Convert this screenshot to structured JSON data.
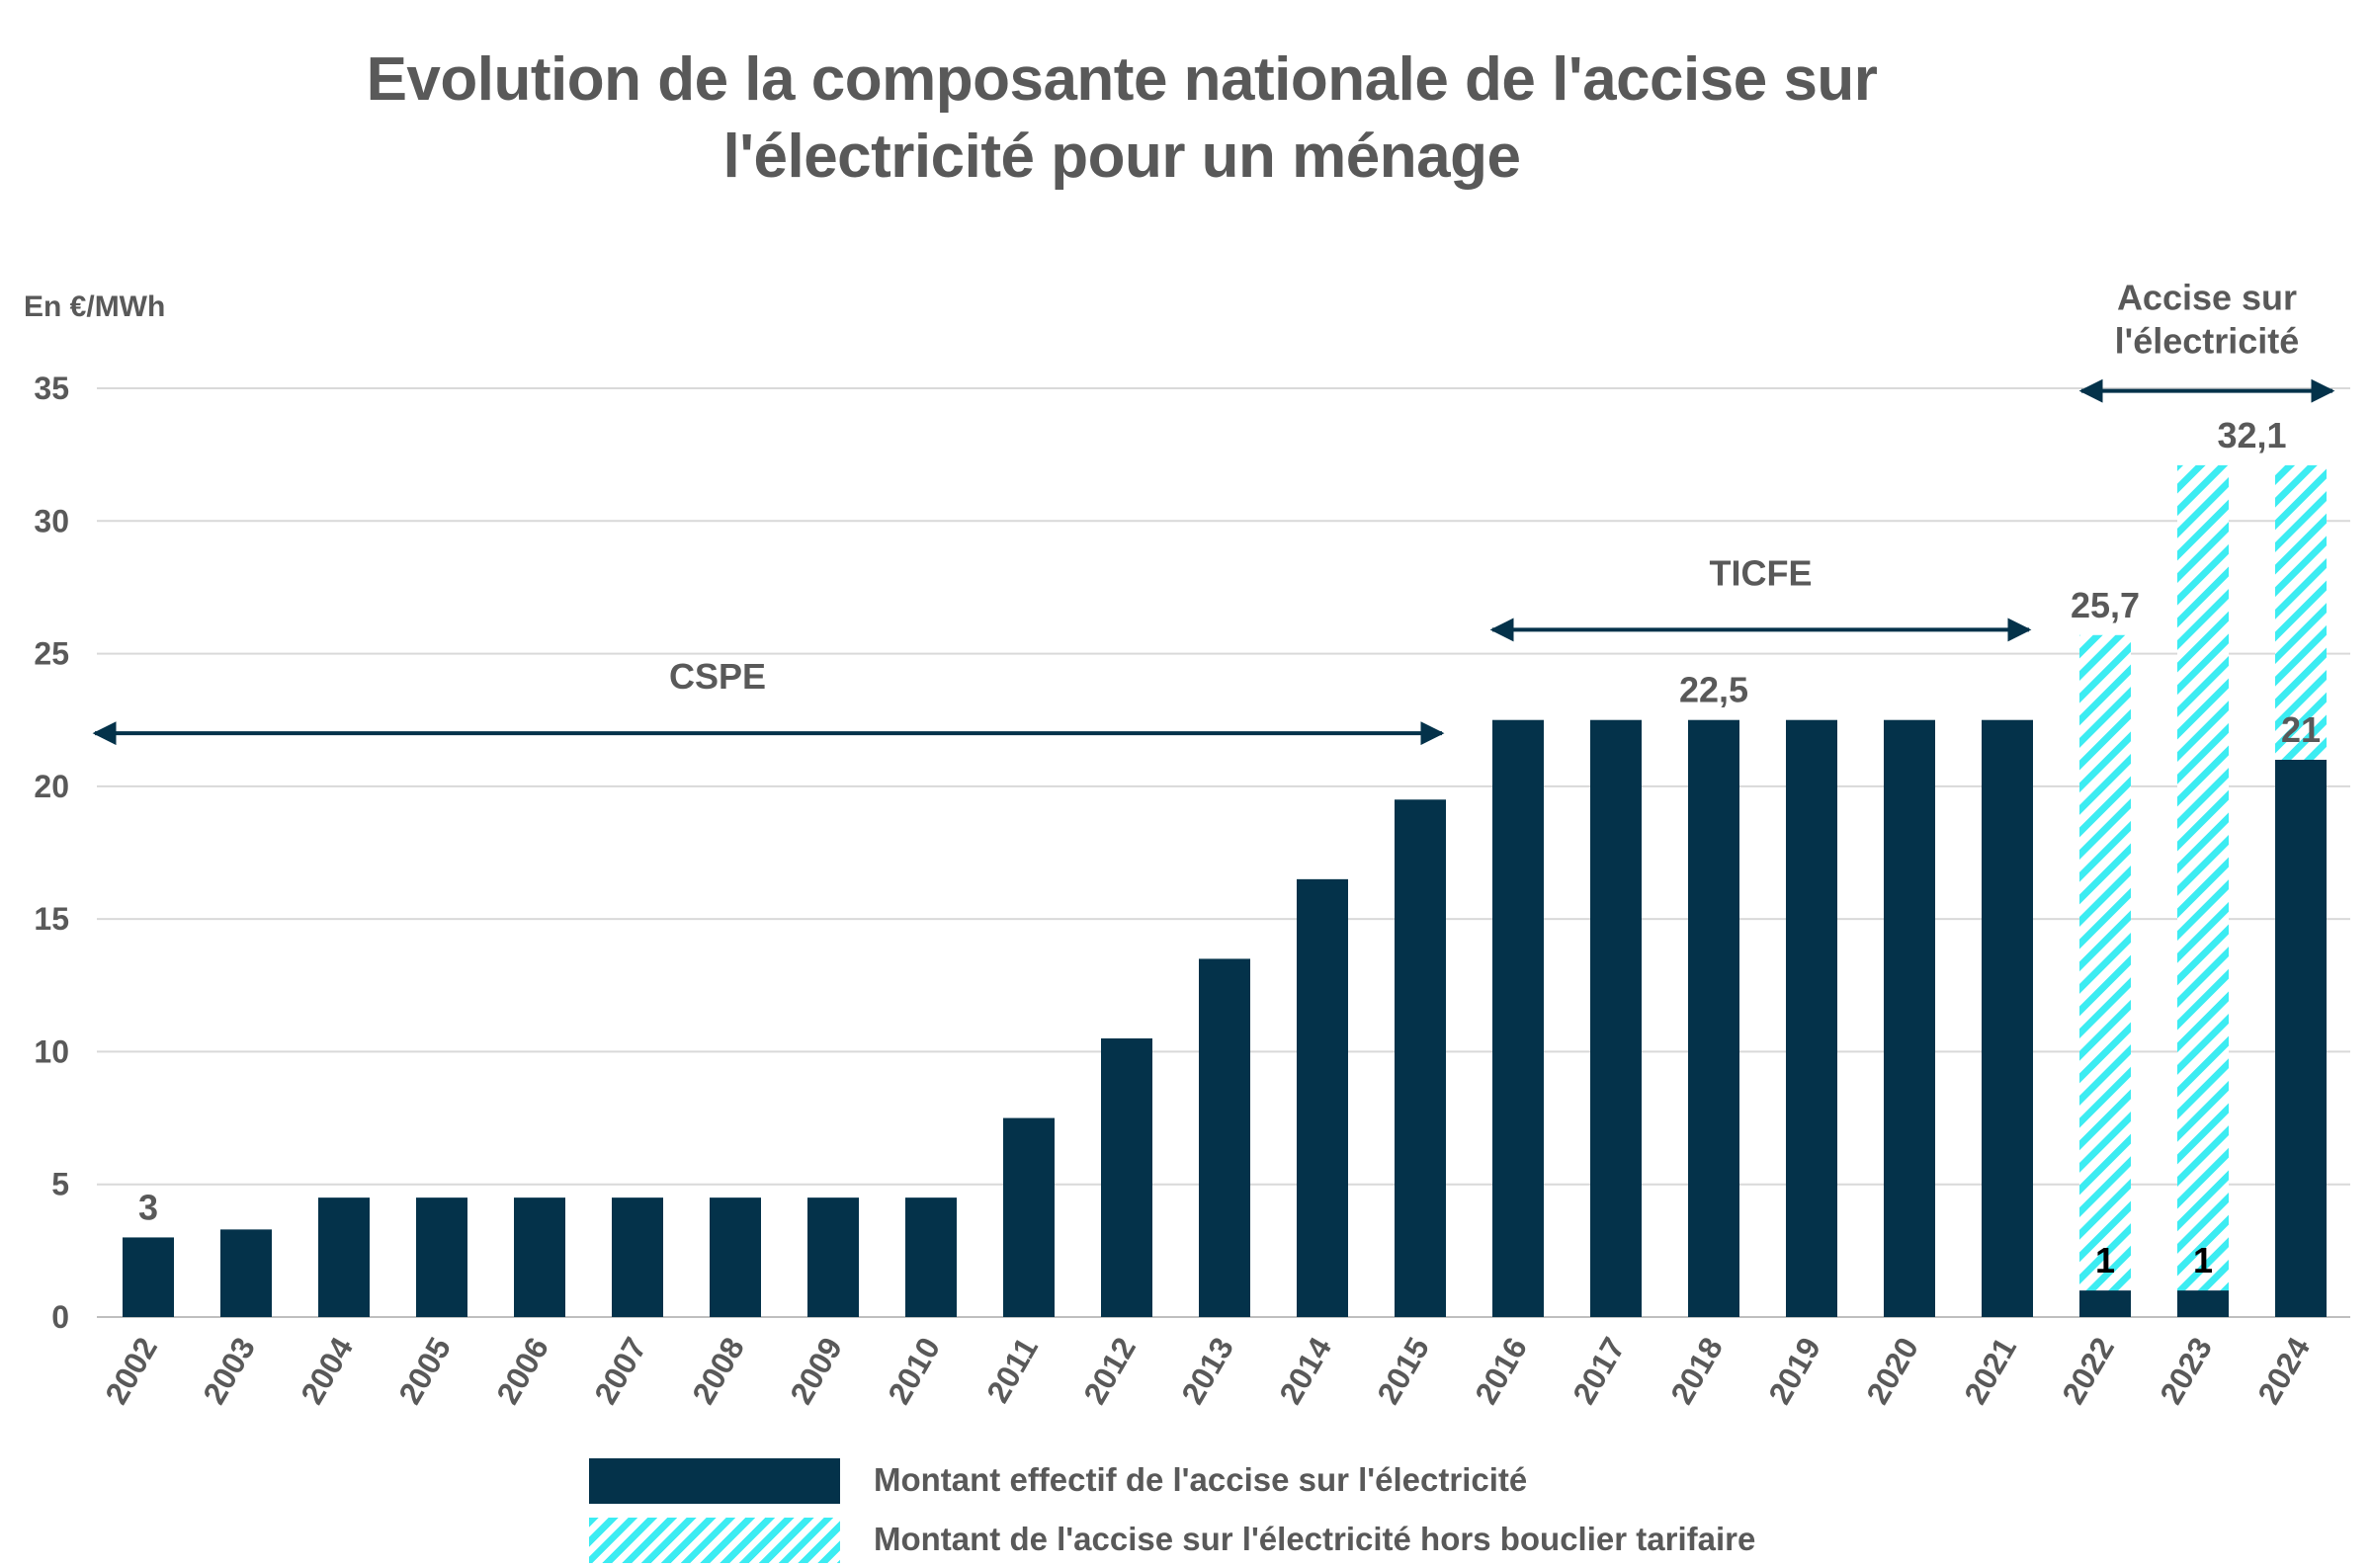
{
  "title_lines": [
    "Evolution de la composante nationale de l'accise sur",
    "l'électricité pour un ménage"
  ],
  "colors": {
    "effective": "#04324a",
    "hatch": "#3cecf2",
    "grid": "#d9d9d9",
    "text": "#595959",
    "arrow": "#04324a"
  },
  "chart_data": {
    "type": "bar",
    "unit_label": "En €/MWh",
    "categories": [
      "2002",
      "2003",
      "2004",
      "2005",
      "2006",
      "2007",
      "2008",
      "2009",
      "2010",
      "2011",
      "2012",
      "2013",
      "2014",
      "2015",
      "2016",
      "2017",
      "2018",
      "2019",
      "2020",
      "2021",
      "2022",
      "2023",
      "2024"
    ],
    "series": [
      {
        "name": "Montant effectif de l'accise sur l'électricité",
        "style": "solid",
        "values": [
          3,
          3.3,
          4.5,
          4.5,
          4.5,
          4.5,
          4.5,
          4.5,
          4.5,
          7.5,
          10.5,
          13.5,
          16.5,
          19.5,
          22.5,
          22.5,
          22.5,
          22.5,
          22.5,
          22.5,
          1,
          1,
          21
        ]
      },
      {
        "name": "Montant de l'accise sur l'électricité hors bouclier tarifaire",
        "style": "hatched",
        "values": [
          null,
          null,
          null,
          null,
          null,
          null,
          null,
          null,
          null,
          null,
          null,
          null,
          null,
          null,
          null,
          null,
          null,
          null,
          null,
          null,
          25.7,
          32.1,
          32.1
        ]
      }
    ],
    "ylim": [
      0,
      35
    ],
    "yticks": [
      0,
      5,
      10,
      15,
      20,
      25,
      30,
      35
    ],
    "grid": true,
    "legend_position": "bottom",
    "data_labels": [
      {
        "category": "2002",
        "value": 3,
        "text": "3",
        "color": "#595959",
        "placement": "above"
      },
      {
        "category": "2018",
        "value": 22.5,
        "text": "22,5",
        "color": "#595959",
        "placement": "above"
      },
      {
        "category": "2022",
        "value": 25.7,
        "text": "25,7",
        "color": "#595959",
        "placement": "above"
      },
      {
        "category": "2022",
        "value": 1,
        "text": "1",
        "color": "#000000",
        "placement": "above"
      },
      {
        "category": "2023",
        "value": 1,
        "text": "1",
        "color": "#000000",
        "placement": "above"
      },
      {
        "category": "2023",
        "value": 32.1,
        "text": "32,1",
        "color": "#595959",
        "placement": "above-right"
      },
      {
        "category": "2024",
        "value": 21,
        "text": "21",
        "color": "#595959",
        "placement": "above"
      }
    ],
    "periods": [
      {
        "label": "CSPE",
        "from": "2002",
        "to": "2015"
      },
      {
        "label": "TICFE",
        "from": "2016",
        "to": "2021"
      },
      {
        "label_lines": [
          "Accise sur",
          "l'électricité"
        ],
        "from": "2022",
        "to": "2024"
      }
    ]
  }
}
